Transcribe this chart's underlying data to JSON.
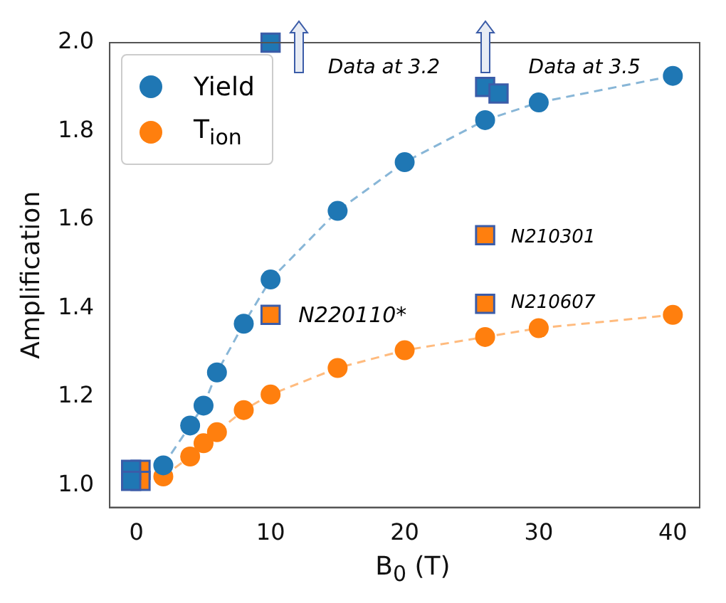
{
  "chart_data": {
    "type": "scatter",
    "xlabel": "B$_{0}$ (T)",
    "ylabel": "Amplification",
    "xlim": [
      -2,
      42
    ],
    "xticks": [
      0,
      10,
      20,
      30,
      40
    ],
    "ylim": [
      0.95,
      2.0
    ],
    "yticks": [
      {
        "value": 1,
        "label": "1.0"
      },
      {
        "value": 1.2,
        "label": "1.2"
      },
      {
        "value": 1.4,
        "label": "1.4"
      },
      {
        "value": 1.6,
        "label": "1.6"
      },
      {
        "value": 1.8,
        "label": "1.8"
      },
      {
        "value": 2,
        "label": "2.0"
      }
    ],
    "grid": false,
    "legend": "top left",
    "series": [
      {
        "name": "Yield",
        "type": "line",
        "line_style": "dashed",
        "marker": "circle",
        "color": "#1f77b4",
        "x": [
          2,
          4,
          5,
          6,
          8,
          10,
          15,
          20,
          26,
          30,
          40
        ],
        "values": [
          1.045,
          1.135,
          1.18,
          1.255,
          1.365,
          1.465,
          1.62,
          1.73,
          1.825,
          1.865,
          1.925
        ]
      },
      {
        "name": "T$_{ion}$",
        "type": "line",
        "line_style": "dashed",
        "marker": "circle",
        "color": "#ff7f0e",
        "x": [
          2,
          4,
          5,
          6,
          8,
          10,
          15,
          20,
          26,
          30,
          40
        ],
        "values": [
          1.02,
          1.065,
          1.095,
          1.12,
          1.17,
          1.205,
          1.265,
          1.305,
          1.335,
          1.355,
          1.385
        ]
      },
      {
        "type": "scatter",
        "marker": "square",
        "color": "#ff7f0e",
        "x": [
          0.3,
          0.3,
          10,
          26,
          26
        ],
        "values": [
          1.035,
          1.01,
          1.385,
          1.565,
          1.41
        ]
      },
      {
        "type": "scatter",
        "marker": "square",
        "color": "#1f77b4",
        "x": [
          10,
          26,
          27,
          -0.4,
          -0.4
        ],
        "values": [
          2.0,
          1.9,
          1.885,
          1.035,
          1.01
        ]
      }
    ],
    "annotations": [
      "Data at 3.2",
      "Data at 3.5",
      "N210301",
      "N210607",
      "N220110*"
    ]
  }
}
